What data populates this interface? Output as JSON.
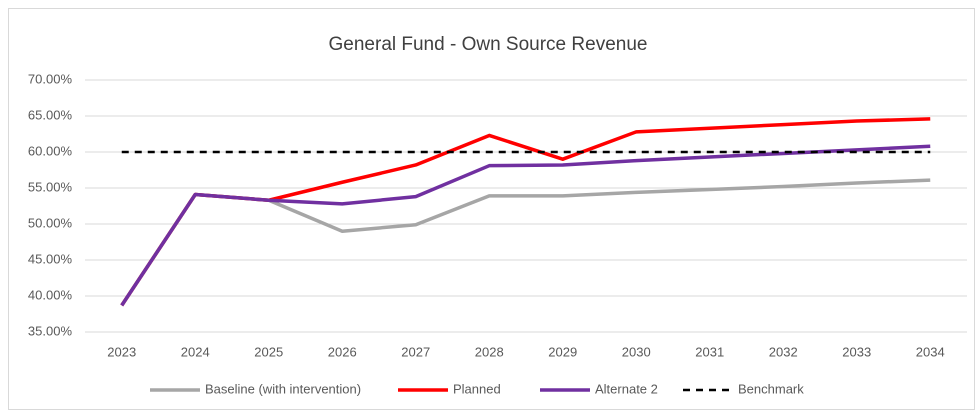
{
  "chart_data": {
    "type": "line",
    "title": "General Fund - Own Source Revenue",
    "categories": [
      "2023",
      "2024",
      "2025",
      "2026",
      "2027",
      "2028",
      "2029",
      "2030",
      "2031",
      "2032",
      "2033",
      "2034"
    ],
    "series": [
      {
        "name": "Baseline (with intervention)",
        "color": "#a6a6a6",
        "dash": false,
        "values": [
          38.7,
          54.1,
          53.3,
          49.0,
          49.9,
          53.9,
          53.9,
          54.4,
          54.8,
          55.2,
          55.7,
          56.1
        ]
      },
      {
        "name": "Planned",
        "color": "#ff0000",
        "dash": false,
        "values": [
          38.7,
          54.1,
          53.3,
          55.8,
          58.2,
          62.3,
          59.0,
          62.8,
          63.3,
          63.8,
          64.3,
          64.6
        ]
      },
      {
        "name": "Alternate 2",
        "color": "#7030a0",
        "dash": false,
        "values": [
          38.7,
          54.1,
          53.3,
          52.8,
          53.8,
          58.1,
          58.2,
          58.8,
          59.3,
          59.8,
          60.3,
          60.8
        ]
      },
      {
        "name": "Benchmark",
        "color": "#000000",
        "dash": true,
        "values": [
          60,
          60,
          60,
          60,
          60,
          60,
          60,
          60,
          60,
          60,
          60,
          60
        ]
      }
    ],
    "ylim": [
      35,
      70
    ],
    "yticks": [
      {
        "value": 35,
        "label": "35.00%"
      },
      {
        "value": 40,
        "label": "40.00%"
      },
      {
        "value": 45,
        "label": "45.00%"
      },
      {
        "value": 50,
        "label": "50.00%"
      },
      {
        "value": 55,
        "label": "55.00%"
      },
      {
        "value": 60,
        "label": "60.00%"
      },
      {
        "value": 65,
        "label": "65.00%"
      },
      {
        "value": 70,
        "label": "70.00%"
      }
    ],
    "grid": true,
    "legend": "bottom"
  }
}
